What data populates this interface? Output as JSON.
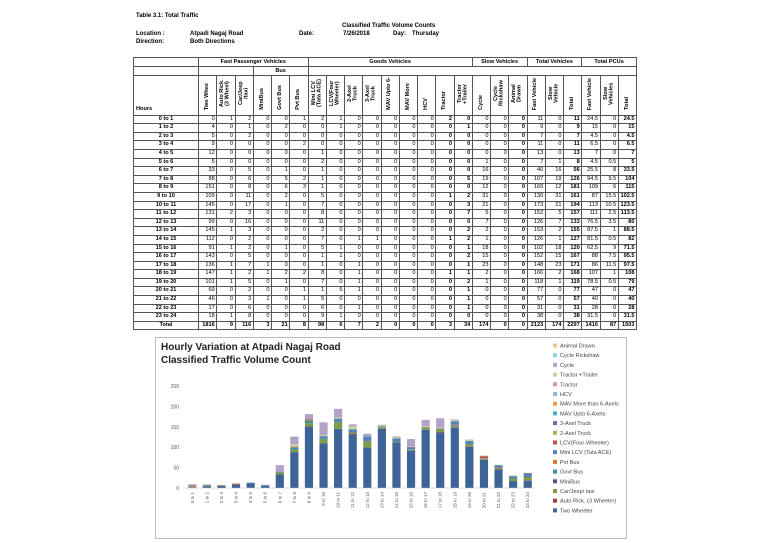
{
  "header": {
    "title": "Table 3.1: Total Traffic",
    "subtitle": "Classified Traffic Volume Counts",
    "location_label": "Location :",
    "location": "Atpadi Nagaj Road",
    "date_label": "Date:",
    "date": "7/26/2018",
    "day_label": "Day:",
    "day": "Thursday",
    "direction_label": "Direction:",
    "direction": "Both Directions"
  },
  "table": {
    "groups": [
      "Fast Passenger Vehicles",
      "Goods Vehicles",
      "Slow Vehicles",
      "Total Vehicles",
      "Total PCUs"
    ],
    "subgroup": "Bus",
    "columns": [
      "Hours",
      "Two Whee",
      "Auto Rick. (3 Wheel)",
      "Car/Jeep /taxi",
      "MiniBus",
      "Govt Bus",
      "Pvt Bus",
      "Mini LCV (Tata ACE)",
      "LCV(Four Wheeler)",
      "2-Axel Truck",
      "3-Axel Truck",
      "MAV Upto 6-",
      "MAV More",
      "HCV",
      "Tractor",
      "Tractor +Trailer",
      "Cycle",
      "Cycle Rickshaw",
      "Animal Drawn",
      "Fast Vehicle",
      "Slow Vehicle",
      "Total",
      "Fast Vehicle",
      "Slow Vehicles",
      "Total"
    ],
    "rows": [
      [
        "0 to 1",
        0,
        1,
        2,
        0,
        0,
        1,
        2,
        1,
        0,
        0,
        0,
        0,
        0,
        2,
        0,
        0,
        0,
        0,
        11,
        0,
        11,
        24.5,
        0,
        24.5
      ],
      [
        "1 to 2",
        4,
        0,
        1,
        0,
        2,
        0,
        0,
        1,
        0,
        0,
        0,
        0,
        0,
        0,
        1,
        0,
        0,
        0,
        9,
        0,
        9,
        15,
        0,
        15
      ],
      [
        "2 to 3",
        5,
        0,
        2,
        0,
        0,
        0,
        0,
        0,
        0,
        0,
        0,
        0,
        0,
        0,
        0,
        0,
        0,
        0,
        7,
        0,
        7,
        4.5,
        0,
        4.5
      ],
      [
        "3 to 4",
        9,
        0,
        0,
        0,
        0,
        2,
        0,
        0,
        0,
        0,
        0,
        0,
        0,
        0,
        0,
        0,
        0,
        0,
        11,
        0,
        11,
        6.5,
        0,
        6.5
      ],
      [
        "4 to 5",
        12,
        0,
        0,
        0,
        0,
        0,
        1,
        0,
        0,
        0,
        0,
        0,
        0,
        0,
        0,
        0,
        0,
        0,
        13,
        0,
        13,
        7,
        0,
        7
      ],
      [
        "5 to 6",
        5,
        0,
        0,
        0,
        0,
        0,
        2,
        0,
        0,
        0,
        0,
        0,
        0,
        0,
        0,
        1,
        0,
        0,
        7,
        1,
        8,
        4.5,
        0.5,
        5
      ],
      [
        "6 to 7",
        33,
        0,
        5,
        0,
        1,
        0,
        1,
        0,
        0,
        0,
        0,
        0,
        0,
        0,
        0,
        16,
        0,
        0,
        40,
        16,
        56,
        25.5,
        8,
        33.5
      ],
      [
        "7 to 8",
        88,
        0,
        6,
        0,
        5,
        2,
        1,
        0,
        0,
        0,
        0,
        0,
        0,
        0,
        5,
        19,
        0,
        0,
        107,
        19,
        126,
        94.5,
        9.5,
        104
      ],
      [
        "8 to 9",
        151,
        0,
        8,
        0,
        6,
        3,
        1,
        0,
        0,
        0,
        0,
        0,
        0,
        0,
        0,
        12,
        0,
        0,
        169,
        12,
        181,
        109,
        6,
        115
      ],
      [
        "9 to 10",
        109,
        0,
        11,
        0,
        2,
        0,
        5,
        0,
        0,
        0,
        0,
        0,
        0,
        1,
        2,
        31,
        0,
        0,
        130,
        31,
        161,
        87,
        15.5,
        102.5
      ],
      [
        "10 to 11",
        145,
        0,
        17,
        0,
        1,
        0,
        7,
        0,
        0,
        0,
        0,
        0,
        0,
        0,
        3,
        21,
        0,
        0,
        173,
        21,
        194,
        113,
        10.5,
        123.5
      ],
      [
        "11 to 12",
        131,
        2,
        3,
        0,
        0,
        0,
        8,
        0,
        0,
        0,
        0,
        0,
        0,
        0,
        7,
        5,
        0,
        0,
        152,
        5,
        157,
        111,
        2.5,
        113.5
      ],
      [
        "12 to 13",
        99,
        0,
        16,
        0,
        0,
        0,
        11,
        0,
        0,
        0,
        0,
        0,
        0,
        0,
        0,
        7,
        0,
        0,
        126,
        7,
        133,
        76.5,
        3.5,
        80
      ],
      [
        "13 to 14",
        145,
        1,
        3,
        0,
        0,
        0,
        2,
        0,
        0,
        0,
        0,
        0,
        0,
        0,
        2,
        2,
        0,
        0,
        153,
        2,
        155,
        87.5,
        1,
        88.5
      ],
      [
        "14 to 15",
        112,
        0,
        2,
        0,
        0,
        0,
        7,
        0,
        1,
        1,
        0,
        0,
        0,
        1,
        2,
        1,
        0,
        0,
        126,
        1,
        127,
        81.5,
        0.5,
        82
      ],
      [
        "15 to 16",
        91,
        1,
        2,
        0,
        1,
        0,
        5,
        1,
        0,
        0,
        0,
        0,
        0,
        0,
        1,
        18,
        0,
        0,
        102,
        18,
        120,
        62.5,
        9,
        71.5
      ],
      [
        "16 to 17",
        143,
        0,
        5,
        0,
        0,
        0,
        1,
        1,
        0,
        0,
        0,
        0,
        0,
        0,
        2,
        15,
        0,
        0,
        152,
        15,
        167,
        88,
        7.5,
        95.5
      ],
      [
        "17 to 18",
        136,
        1,
        7,
        1,
        0,
        0,
        1,
        0,
        1,
        0,
        0,
        0,
        0,
        0,
        1,
        23,
        0,
        0,
        148,
        23,
        171,
        86,
        11.5,
        97.5
      ],
      [
        "18 to 19",
        147,
        1,
        2,
        1,
        2,
        2,
        8,
        0,
        1,
        0,
        0,
        0,
        0,
        1,
        1,
        2,
        0,
        0,
        166,
        2,
        168,
        107,
        1,
        108
      ],
      [
        "19 to 20",
        101,
        1,
        5,
        0,
        1,
        0,
        7,
        0,
        1,
        0,
        0,
        0,
        0,
        0,
        2,
        1,
        0,
        0,
        118,
        1,
        119,
        78.5,
        0.5,
        79
      ],
      [
        "20 to 21",
        69,
        0,
        2,
        0,
        0,
        1,
        1,
        5,
        1,
        0,
        0,
        0,
        0,
        0,
        1,
        0,
        0,
        0,
        77,
        0,
        77,
        47,
        0,
        47
      ],
      [
        "21 to 22",
        46,
        0,
        3,
        1,
        0,
        1,
        5,
        0,
        0,
        0,
        0,
        0,
        0,
        0,
        1,
        0,
        0,
        0,
        57,
        0,
        57,
        40,
        0,
        40
      ],
      [
        "22 to 23",
        17,
        0,
        6,
        0,
        0,
        0,
        6,
        0,
        1,
        0,
        0,
        0,
        0,
        0,
        1,
        0,
        0,
        0,
        31,
        0,
        31,
        28,
        0,
        28
      ],
      [
        "23 to 24",
        18,
        1,
        8,
        0,
        0,
        0,
        9,
        1,
        0,
        0,
        0,
        0,
        0,
        0,
        0,
        0,
        0,
        0,
        38,
        0,
        38,
        31.5,
        0,
        31.5
      ]
    ],
    "total": [
      "Total",
      1816,
      9,
      116,
      3,
      21,
      8,
      98,
      6,
      7,
      2,
      0,
      0,
      0,
      3,
      34,
      174,
      0,
      0,
      2123,
      174,
      2297,
      1416,
      87,
      1503
    ]
  },
  "chart_data": {
    "type": "bar",
    "stacked": true,
    "title": "Hourly Variation at Atpadi Nagaj Road",
    "subtitle": "Classified Traffic Volume Count",
    "categories": [
      "0 to 1",
      "1 to 2",
      "2 to 3",
      "3 to 4",
      "4 to 5",
      "5 to 6",
      "6 to 7",
      "7 to 8",
      "8 to 9",
      "9 to 10",
      "10 to 11",
      "11 to 12",
      "12 to 13",
      "13 to 14",
      "14 to 15",
      "15 to 16",
      "16 to 17",
      "17 to 18",
      "18 to 19",
      "19 to 20",
      "20 to 21",
      "21 to 22",
      "22 to 23",
      "23 to 24"
    ],
    "ylim": [
      0,
      250
    ],
    "yticks": [
      0,
      50,
      100,
      150,
      200,
      250
    ],
    "grid": false,
    "series": [
      {
        "name": "Two Wheeler",
        "color": "#3d6399",
        "values": [
          0,
          4,
          5,
          9,
          12,
          5,
          33,
          88,
          151,
          109,
          145,
          131,
          99,
          145,
          112,
          91,
          143,
          136,
          147,
          101,
          69,
          46,
          17,
          18
        ]
      },
      {
        "name": "Auto Rick. (3 Wheeler)",
        "color": "#a13d3a",
        "values": [
          1,
          0,
          0,
          0,
          0,
          0,
          0,
          0,
          0,
          0,
          0,
          2,
          0,
          1,
          0,
          1,
          0,
          1,
          1,
          1,
          0,
          0,
          0,
          1
        ]
      },
      {
        "name": "Car/Jeep/ taxi",
        "color": "#7f9a48",
        "values": [
          2,
          1,
          2,
          0,
          0,
          0,
          5,
          6,
          8,
          11,
          17,
          3,
          16,
          3,
          2,
          2,
          5,
          7,
          2,
          5,
          2,
          3,
          6,
          8
        ]
      },
      {
        "name": "MiniBus",
        "color": "#664e85",
        "values": [
          0,
          0,
          0,
          0,
          0,
          0,
          0,
          0,
          0,
          0,
          0,
          0,
          0,
          0,
          0,
          0,
          0,
          1,
          1,
          0,
          0,
          1,
          0,
          0
        ]
      },
      {
        "name": "Govt Bus",
        "color": "#3a8ea5",
        "values": [
          0,
          2,
          0,
          0,
          0,
          0,
          1,
          5,
          6,
          2,
          1,
          0,
          0,
          0,
          0,
          1,
          0,
          0,
          2,
          1,
          0,
          0,
          0,
          0
        ]
      },
      {
        "name": "Pvt Bus",
        "color": "#d07a35",
        "values": [
          1,
          0,
          0,
          2,
          0,
          0,
          0,
          2,
          3,
          0,
          0,
          0,
          0,
          0,
          0,
          0,
          0,
          0,
          2,
          0,
          1,
          1,
          0,
          0
        ]
      },
      {
        "name": "Mini LCV (Tata ACE)",
        "color": "#4f81bd",
        "values": [
          2,
          0,
          0,
          0,
          1,
          2,
          1,
          1,
          1,
          5,
          7,
          8,
          11,
          2,
          7,
          5,
          1,
          1,
          8,
          7,
          1,
          5,
          6,
          9
        ]
      },
      {
        "name": "LCV(Four-Wheeler)",
        "color": "#c0504d",
        "values": [
          1,
          1,
          0,
          0,
          0,
          0,
          0,
          0,
          0,
          0,
          0,
          0,
          0,
          0,
          0,
          1,
          1,
          0,
          0,
          0,
          5,
          0,
          0,
          1
        ]
      },
      {
        "name": "2-Axel Truck",
        "color": "#9bbb59",
        "values": [
          0,
          0,
          0,
          0,
          0,
          0,
          0,
          0,
          0,
          0,
          0,
          0,
          0,
          0,
          1,
          0,
          0,
          1,
          1,
          1,
          1,
          0,
          1,
          0
        ]
      },
      {
        "name": "3-Axel Truck",
        "color": "#8064a2",
        "values": [
          0,
          0,
          0,
          0,
          0,
          0,
          0,
          0,
          0,
          0,
          0,
          0,
          0,
          0,
          1,
          0,
          0,
          0,
          0,
          0,
          0,
          0,
          0,
          0
        ]
      },
      {
        "name": "MAV Upto 6-Axels",
        "color": "#4bacc6",
        "values": [
          0,
          0,
          0,
          0,
          0,
          0,
          0,
          0,
          0,
          0,
          0,
          0,
          0,
          0,
          0,
          0,
          0,
          0,
          0,
          0,
          0,
          0,
          0,
          0
        ]
      },
      {
        "name": "MAV More than 6-Axels",
        "color": "#f79646",
        "values": [
          0,
          0,
          0,
          0,
          0,
          0,
          0,
          0,
          0,
          0,
          0,
          0,
          0,
          0,
          0,
          0,
          0,
          0,
          0,
          0,
          0,
          0,
          0,
          0
        ]
      },
      {
        "name": "HCV",
        "color": "#95b3d7",
        "values": [
          0,
          0,
          0,
          0,
          0,
          0,
          0,
          0,
          0,
          0,
          0,
          0,
          0,
          0,
          0,
          0,
          0,
          0,
          0,
          0,
          0,
          0,
          0,
          0
        ]
      },
      {
        "name": "Tractor",
        "color": "#d99694",
        "values": [
          2,
          0,
          0,
          0,
          0,
          0,
          0,
          0,
          0,
          1,
          0,
          0,
          0,
          0,
          1,
          0,
          0,
          0,
          1,
          0,
          0,
          0,
          0,
          0
        ]
      },
      {
        "name": "Tractor +Trailer",
        "color": "#c3d69b",
        "values": [
          0,
          1,
          0,
          0,
          0,
          0,
          0,
          5,
          0,
          2,
          3,
          7,
          0,
          2,
          2,
          1,
          2,
          1,
          1,
          2,
          1,
          1,
          1,
          0
        ]
      },
      {
        "name": "Cycle",
        "color": "#b3a2c7",
        "values": [
          0,
          0,
          0,
          0,
          0,
          1,
          16,
          19,
          12,
          31,
          21,
          5,
          7,
          2,
          1,
          18,
          15,
          23,
          2,
          1,
          0,
          0,
          0,
          0
        ]
      },
      {
        "name": "Cycle Rickshaw",
        "color": "#93cddd",
        "values": [
          0,
          0,
          0,
          0,
          0,
          0,
          0,
          0,
          0,
          0,
          0,
          0,
          0,
          0,
          0,
          0,
          0,
          0,
          0,
          0,
          0,
          0,
          0,
          0
        ]
      },
      {
        "name": "Animal Drawn",
        "color": "#fac090",
        "values": [
          0,
          0,
          0,
          0,
          0,
          0,
          0,
          0,
          0,
          0,
          0,
          0,
          0,
          0,
          0,
          0,
          0,
          0,
          0,
          0,
          0,
          0,
          0,
          0
        ]
      }
    ]
  }
}
